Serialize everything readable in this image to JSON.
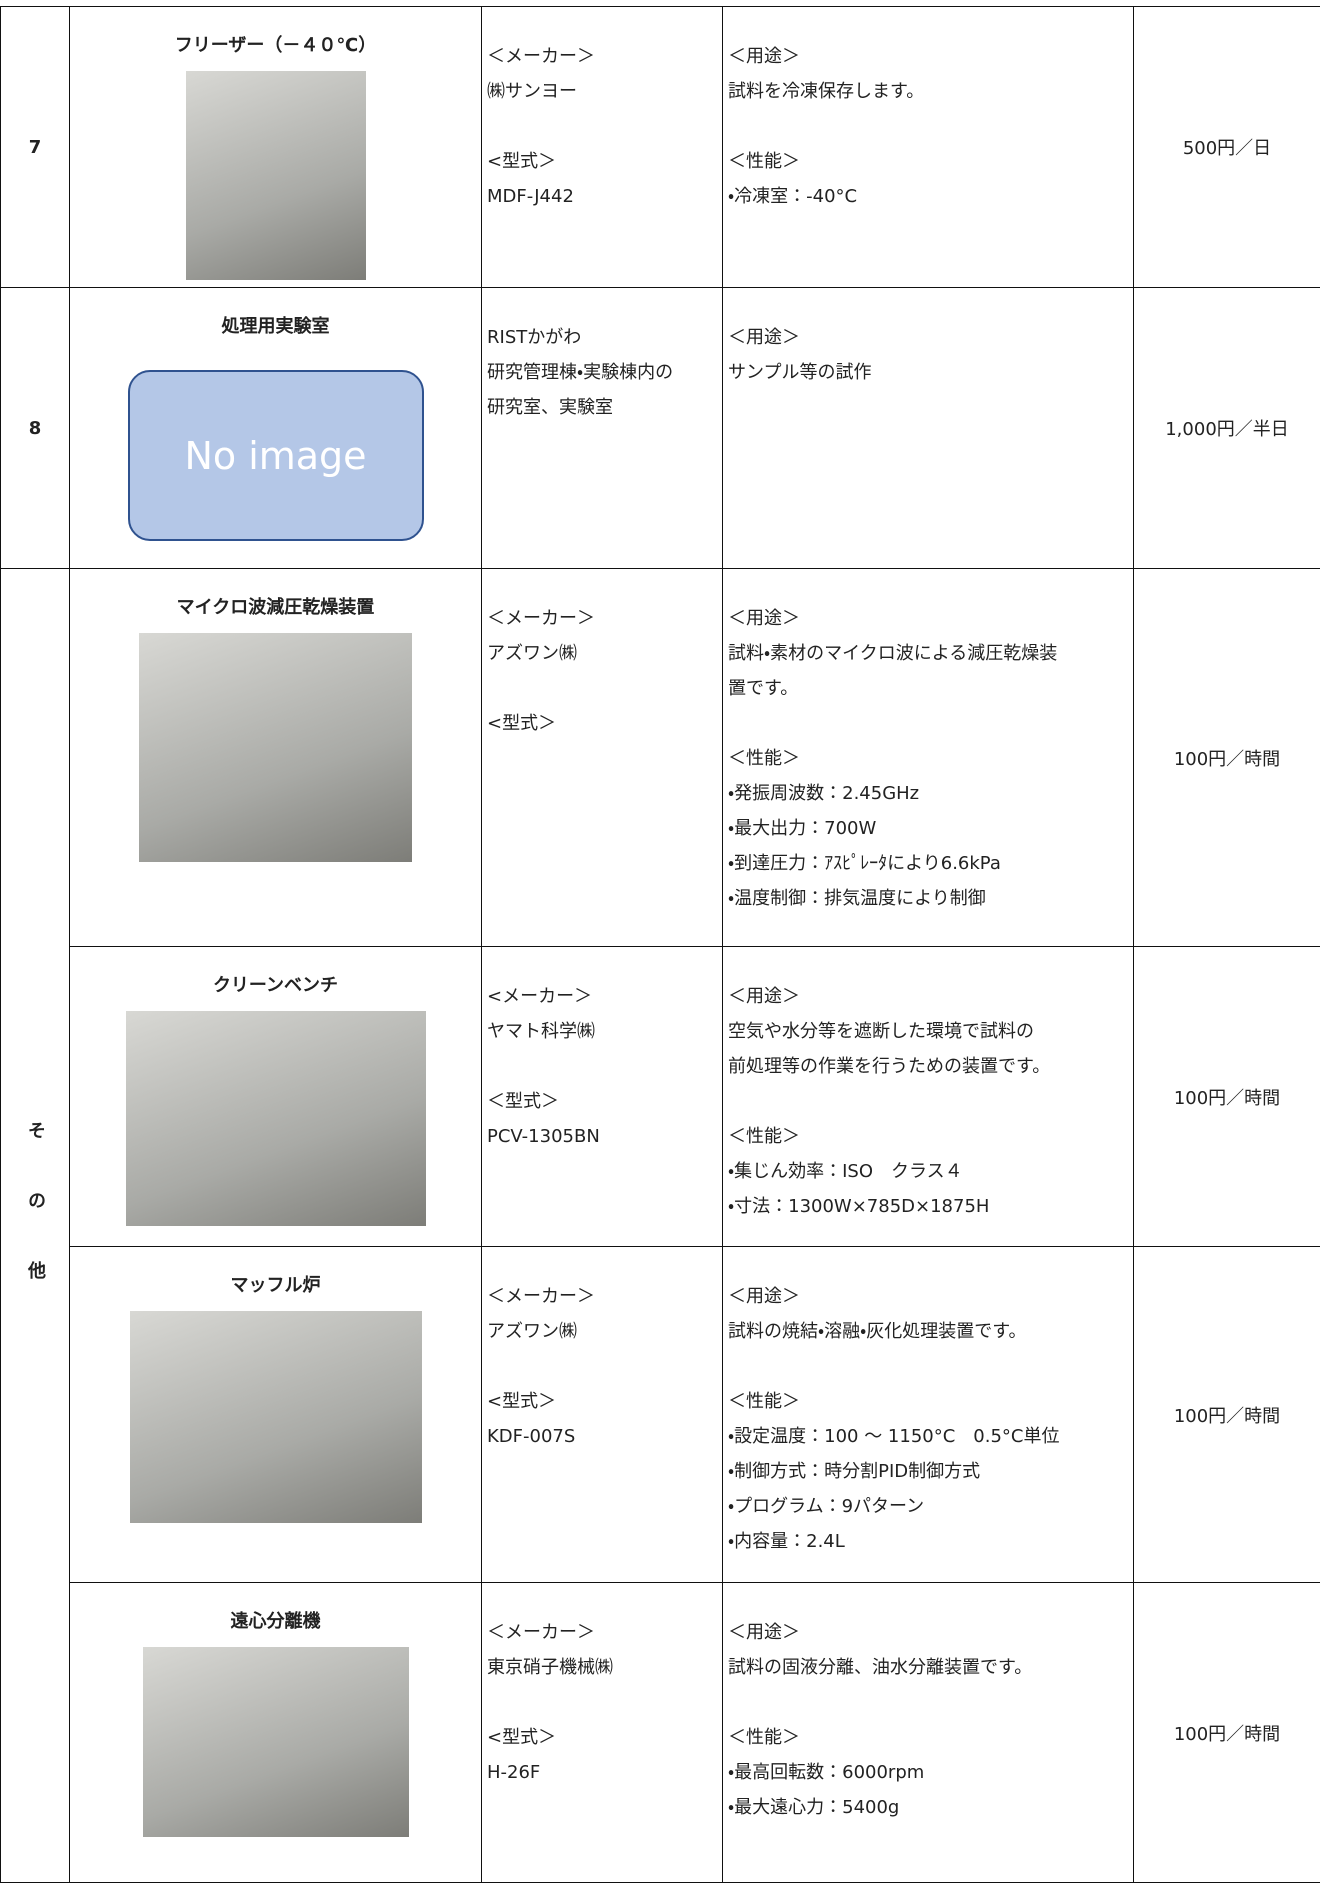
{
  "table": {
    "group_label": "その他",
    "rows": [
      {
        "no": "7",
        "name": "フリーザー（－４０℃）",
        "maker": [
          [
            "＜メーカー＞",
            "㈱サンヨー"
          ],
          [
            "<型式＞",
            "MDF-J442"
          ]
        ],
        "spec": [
          [
            "＜用途＞",
            "試料を冷凍保存します。"
          ],
          [
            "＜性能＞",
            "・冷凍室：-40°C"
          ]
        ],
        "fee": "500円／日"
      },
      {
        "no": "8",
        "name": "処理用実験室",
        "image_text": "No image",
        "maker": [
          [
            "RISTかがわ",
            "研究管理棟・実験棟内の",
            "研究室、実験室"
          ]
        ],
        "spec": [
          [
            "＜用途＞",
            "サンプル等の試作"
          ]
        ],
        "fee": "1,000円／半日"
      },
      {
        "name": "マイクロ波減圧乾燥装置",
        "maker": [
          [
            "＜メーカー＞",
            "アズワン㈱"
          ],
          [
            "<型式＞"
          ]
        ],
        "spec": [
          [
            "＜用途＞",
            "試料・素材のマイクロ波による減圧乾燥装",
            "置です。"
          ],
          [
            "＜性能＞",
            "・発振周波数：2.45GHz",
            "・最大出力：700W",
            "・到達圧力：ｱｽﾋﾟﾚｰﾀにより6.6kPa",
            "・温度制御：排気温度により制御"
          ]
        ],
        "fee": "100円／時間"
      },
      {
        "name": "クリーンベンチ",
        "maker": [
          [
            "<メーカー＞",
            "ヤマト科学㈱"
          ],
          [
            "＜型式＞",
            "PCV-1305BN"
          ]
        ],
        "spec": [
          [
            "＜用途＞",
            "空気や水分等を遮断した環境で試料の",
            "前処理等の作業を行うための装置です。"
          ],
          [
            "＜性能＞",
            "・集じん効率：ISO　クラス４",
            "・寸法：1300W×785D×1875H"
          ]
        ],
        "fee": "100円／時間"
      },
      {
        "name": "マッフル炉",
        "maker": [
          [
            "＜メーカー＞",
            "アズワン㈱"
          ],
          [
            "<型式＞",
            "KDF-007S"
          ]
        ],
        "spec": [
          [
            "＜用途＞",
            "試料の焼結・溶融・灰化処理装置です。"
          ],
          [
            "＜性能＞",
            "・設定温度：100 ～ 1150°C　0.5°C単位",
            "・制御方式：時分割PID制御方式",
            "・プログラム：9パターン",
            "・内容量：2.4L"
          ]
        ],
        "fee": "100円／時間"
      },
      {
        "name": "遠心分離機",
        "maker": [
          [
            "＜メーカー＞",
            "東京硝子機械㈱"
          ],
          [
            "<型式＞",
            "H-26F"
          ]
        ],
        "spec": [
          [
            "＜用途＞",
            "試料の固液分離、油水分離装置です。"
          ],
          [
            "＜性能＞",
            "・最高回転数：6000rpm",
            "・最大遠心力：5400g"
          ]
        ],
        "fee": "100円／時間"
      }
    ]
  }
}
